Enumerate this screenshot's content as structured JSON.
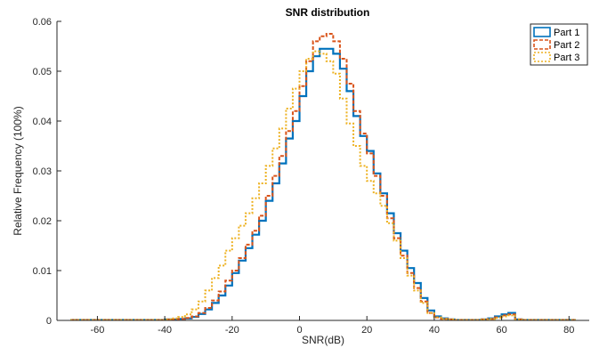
{
  "chart_data": {
    "type": "line",
    "title": "SNR distribution",
    "xlabel": "SNR(dB)",
    "ylabel": "Relative Frequency (100%)",
    "xlim": [
      -72,
      86
    ],
    "ylim": [
      0,
      0.06
    ],
    "xticks": [
      -60,
      -40,
      -20,
      0,
      20,
      40,
      60,
      80
    ],
    "yticks": [
      0,
      0.01,
      0.02,
      0.03,
      0.04,
      0.05,
      0.06
    ],
    "ytick_labels": [
      "0",
      "0.01",
      "0.02",
      "0.03",
      "0.04",
      "0.05",
      "0.06"
    ],
    "grid": false,
    "legend_position": "top-right",
    "x_start": -68,
    "bin_width": 2,
    "series": [
      {
        "name": "Part 1",
        "color": "#0072BD",
        "dash": "solid",
        "values": [
          0.0001,
          0.0001,
          0.0001,
          0.0001,
          0.0001,
          0.0001,
          0.0001,
          0.0001,
          0.0001,
          0.0001,
          0.0001,
          0.0001,
          0.0001,
          0.0001,
          0.0002,
          0.0002,
          0.0003,
          0.0004,
          0.0007,
          0.0013,
          0.0022,
          0.0035,
          0.005,
          0.007,
          0.0095,
          0.012,
          0.0145,
          0.0172,
          0.02,
          0.024,
          0.0275,
          0.0315,
          0.0365,
          0.04,
          0.045,
          0.05,
          0.053,
          0.0545,
          0.0545,
          0.0535,
          0.0505,
          0.046,
          0.041,
          0.037,
          0.034,
          0.0295,
          0.0255,
          0.0215,
          0.0175,
          0.014,
          0.0105,
          0.0075,
          0.0045,
          0.002,
          0.0008,
          0.0004,
          0.0002,
          0.0001,
          0.0001,
          0.0001,
          0.0001,
          0.0002,
          0.0004,
          0.0008,
          0.0012,
          0.0015,
          0.0002,
          0.0001,
          0.0001,
          0.0001,
          0.0001,
          0.0001,
          0.0001,
          0.0001,
          0.0001
        ]
      },
      {
        "name": "Part 2",
        "color": "#D95319",
        "dash": "4,2",
        "values": [
          0.0001,
          0.0001,
          0.0001,
          0.0001,
          0.0001,
          0.0001,
          0.0001,
          0.0001,
          0.0001,
          0.0001,
          0.0001,
          0.0001,
          0.0001,
          0.0001,
          0.0002,
          0.0002,
          0.0003,
          0.0005,
          0.0008,
          0.0015,
          0.0025,
          0.004,
          0.0058,
          0.008,
          0.01,
          0.0125,
          0.0152,
          0.018,
          0.021,
          0.025,
          0.029,
          0.033,
          0.038,
          0.042,
          0.047,
          0.052,
          0.056,
          0.057,
          0.0575,
          0.056,
          0.0525,
          0.0475,
          0.042,
          0.0375,
          0.0335,
          0.029,
          0.025,
          0.0205,
          0.0165,
          0.013,
          0.0095,
          0.0065,
          0.0038,
          0.0015,
          0.0006,
          0.0003,
          0.0002,
          0.0001,
          0.0001,
          0.0001,
          0.0001,
          0.0002,
          0.0003,
          0.0006,
          0.001,
          0.0012,
          0.0002,
          0.0001,
          0.0001,
          0.0001,
          0.0001,
          0.0001,
          0.0001,
          0.0001,
          0.0001
        ]
      },
      {
        "name": "Part 3",
        "color": "#EDB120",
        "dash": "2,2",
        "values": [
          0.0001,
          0.0001,
          0.0001,
          0.0001,
          0.0001,
          0.0001,
          0.0001,
          0.0001,
          0.0001,
          0.0001,
          0.0001,
          0.0001,
          0.0001,
          0.0001,
          0.0002,
          0.0004,
          0.0007,
          0.0012,
          0.0022,
          0.0038,
          0.006,
          0.0085,
          0.011,
          0.014,
          0.0165,
          0.019,
          0.0215,
          0.0245,
          0.0275,
          0.031,
          0.0345,
          0.0385,
          0.0425,
          0.0465,
          0.05,
          0.0525,
          0.054,
          0.0535,
          0.052,
          0.0495,
          0.0445,
          0.0395,
          0.035,
          0.031,
          0.028,
          0.0255,
          0.023,
          0.0195,
          0.016,
          0.0125,
          0.009,
          0.006,
          0.0035,
          0.0015,
          0.0006,
          0.0003,
          0.0002,
          0.0001,
          0.0001,
          0.0001,
          0.0001,
          0.0002,
          0.0003,
          0.0005,
          0.0008,
          0.001,
          0.0002,
          0.0001,
          0.0001,
          0.0001,
          0.0001,
          0.0001,
          0.0001,
          0.0001,
          0.0001
        ]
      }
    ]
  }
}
